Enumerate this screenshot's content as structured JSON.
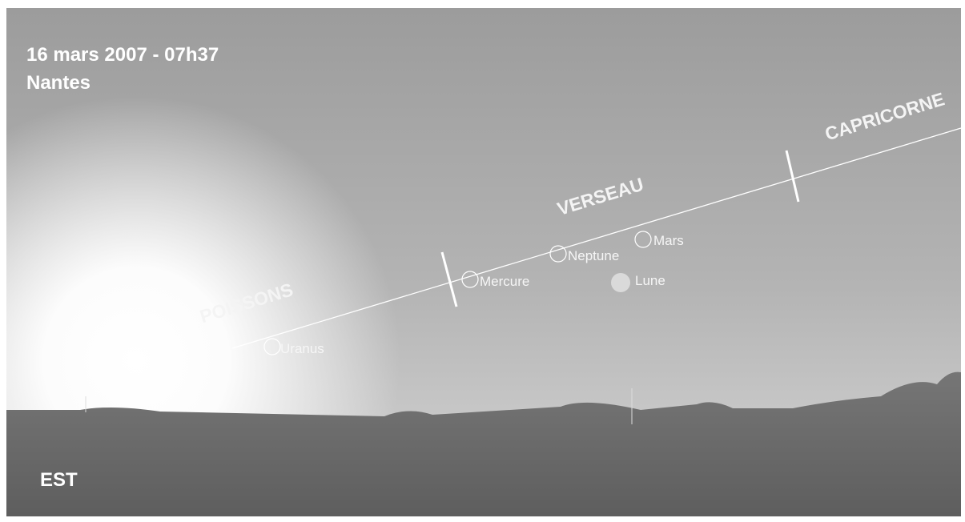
{
  "header": {
    "datetime": "16 mars 2007 - 07h37",
    "location": "Nantes"
  },
  "constellations": [
    {
      "label": "POISSONS"
    },
    {
      "label": "VERSEAU"
    },
    {
      "label": "CAPRICORNE"
    }
  ],
  "planets": [
    {
      "label": "Uranus"
    },
    {
      "label": "Mercure"
    },
    {
      "label": "Neptune"
    },
    {
      "label": "Mars"
    },
    {
      "label": "Lune"
    }
  ],
  "direction": "EST"
}
